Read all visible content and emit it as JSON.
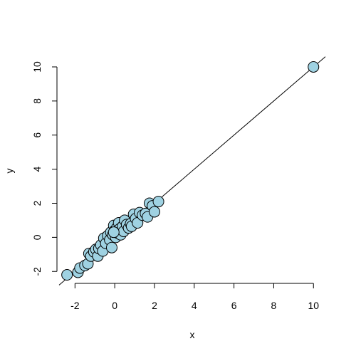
{
  "chart_data": {
    "type": "scatter",
    "title": "",
    "xlabel": "x",
    "ylabel": "y",
    "xlim": [
      -2.8,
      10.6
    ],
    "ylim": [
      -2.7,
      10.5
    ],
    "xticks": [
      -2,
      0,
      2,
      4,
      6,
      8,
      10
    ],
    "yticks": [
      -2,
      0,
      2,
      4,
      6,
      8,
      10
    ],
    "grid": false,
    "legend": "none",
    "point_color": "#9fd2e2",
    "line_color": "#000000",
    "fit_line": {
      "intercept": 0,
      "slope": 1
    },
    "points": [
      {
        "x": -2.4,
        "y": -2.2
      },
      {
        "x": -1.85,
        "y": -2.05
      },
      {
        "x": -1.75,
        "y": -1.8
      },
      {
        "x": -1.5,
        "y": -1.65
      },
      {
        "x": -1.35,
        "y": -1.55
      },
      {
        "x": -1.3,
        "y": -0.95
      },
      {
        "x": -1.2,
        "y": -1.1
      },
      {
        "x": -1.05,
        "y": -0.85
      },
      {
        "x": -0.95,
        "y": -0.7
      },
      {
        "x": -0.85,
        "y": -1.1
      },
      {
        "x": -0.8,
        "y": -0.65
      },
      {
        "x": -0.7,
        "y": -0.45
      },
      {
        "x": -0.6,
        "y": -0.8
      },
      {
        "x": -0.55,
        "y": -0.05
      },
      {
        "x": -0.45,
        "y": -0.35
      },
      {
        "x": -0.35,
        "y": 0.1
      },
      {
        "x": -0.25,
        "y": -0.15
      },
      {
        "x": -0.2,
        "y": 0.3
      },
      {
        "x": -0.15,
        "y": -0.6
      },
      {
        "x": -0.1,
        "y": 0.15
      },
      {
        "x": -0.05,
        "y": 0.7
      },
      {
        "x": 0.0,
        "y": 0.4
      },
      {
        "x": 0.05,
        "y": 0.0
      },
      {
        "x": 0.1,
        "y": 0.55
      },
      {
        "x": 0.15,
        "y": 0.25
      },
      {
        "x": 0.2,
        "y": 0.85
      },
      {
        "x": 0.25,
        "y": 0.5
      },
      {
        "x": 0.3,
        "y": 0.15
      },
      {
        "x": 0.4,
        "y": 0.65
      },
      {
        "x": 0.45,
        "y": 0.35
      },
      {
        "x": 0.5,
        "y": 1.0
      },
      {
        "x": 0.6,
        "y": 0.75
      },
      {
        "x": 0.7,
        "y": 0.55
      },
      {
        "x": 0.8,
        "y": 0.8
      },
      {
        "x": 0.85,
        "y": 0.65
      },
      {
        "x": 0.95,
        "y": 1.35
      },
      {
        "x": 1.05,
        "y": 1.1
      },
      {
        "x": 1.15,
        "y": 0.85
      },
      {
        "x": 1.25,
        "y": 1.45
      },
      {
        "x": 1.4,
        "y": 1.3
      },
      {
        "x": 1.55,
        "y": 1.4
      },
      {
        "x": 1.65,
        "y": 1.2
      },
      {
        "x": 1.75,
        "y": 2.0
      },
      {
        "x": 1.9,
        "y": 1.85
      },
      {
        "x": 2.0,
        "y": 1.5
      },
      {
        "x": 2.2,
        "y": 2.1
      },
      {
        "x": -0.05,
        "y": 0.3
      },
      {
        "x": 10.0,
        "y": 10.0
      }
    ]
  }
}
